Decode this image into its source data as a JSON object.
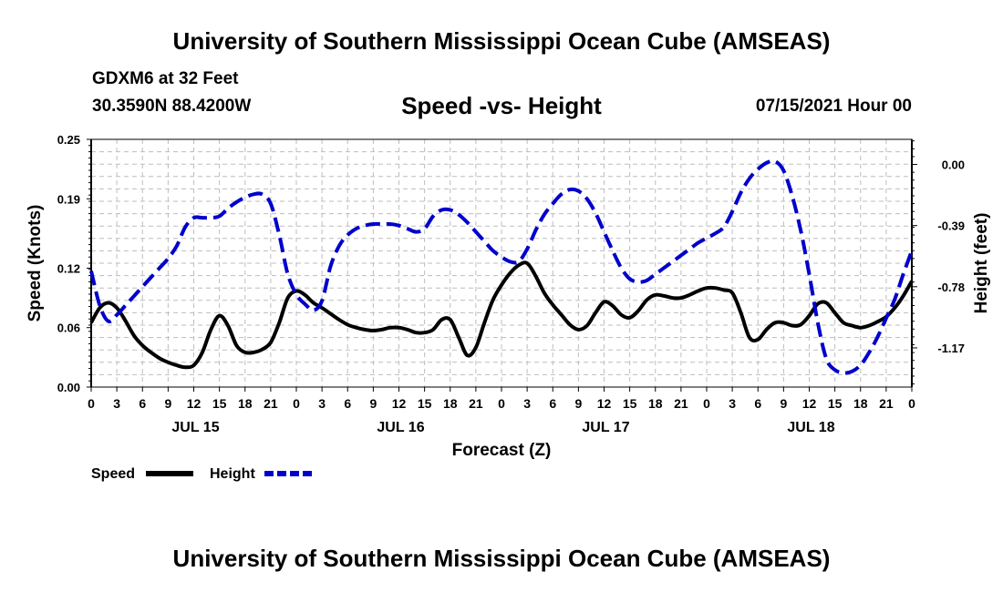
{
  "header": {
    "title": "University of Southern Mississippi Ocean Cube (AMSEAS)",
    "station": "GDXM6 at 32 Feet",
    "coords": "30.3590N  88.4200W",
    "chart_title": "Speed -vs- Height",
    "datetime": "07/15/2021 Hour 00"
  },
  "footer": {
    "title": "University of Southern Mississippi Ocean Cube (AMSEAS)"
  },
  "legend": {
    "speed_label": "Speed",
    "height_label": "Height"
  },
  "chart_data": {
    "type": "line",
    "title": "Speed -vs- Height",
    "xlabel": "Forecast (Z)",
    "ylabel": "Speed (Knots)",
    "y2label": "Height (feet)",
    "x_range": [
      0,
      96
    ],
    "x_ticks": [
      0,
      3,
      6,
      9,
      12,
      15,
      18,
      21,
      24,
      27,
      30,
      33,
      36,
      39,
      42,
      45,
      48,
      51,
      54,
      57,
      60,
      63,
      66,
      69,
      72,
      75,
      78,
      81,
      84,
      87,
      90,
      93,
      96
    ],
    "x_tick_labels": [
      "0",
      "3",
      "6",
      "9",
      "12",
      "15",
      "18",
      "21",
      "0",
      "3",
      "6",
      "9",
      "12",
      "15",
      "18",
      "21",
      "0",
      "3",
      "6",
      "9",
      "12",
      "15",
      "18",
      "21",
      "0",
      "3",
      "6",
      "9",
      "12",
      "15",
      "18",
      "21",
      "0"
    ],
    "day_labels": [
      {
        "label": "JUL 15",
        "x": 12
      },
      {
        "label": "JUL 16",
        "x": 36
      },
      {
        "label": "JUL 17",
        "x": 60
      },
      {
        "label": "JUL 18",
        "x": 84
      }
    ],
    "ylim": [
      0,
      0.25
    ],
    "y_ticks": [
      0.0,
      0.06,
      0.12,
      0.19,
      0.25
    ],
    "y_tick_labels": [
      "0.00",
      "0.06",
      "0.12",
      "0.19",
      "0.25"
    ],
    "y2lim": [
      -1.42,
      0.16
    ],
    "y2_ticks": [
      0.0,
      -0.39,
      -0.78,
      -1.17
    ],
    "y2_tick_labels": [
      "0.00",
      "-0.39",
      "-0.78",
      "-1.17"
    ],
    "grid": true,
    "series": [
      {
        "name": "Speed",
        "axis": "left",
        "color": "#000000",
        "style": "solid",
        "x": [
          0,
          1,
          2,
          3,
          4,
          5,
          6,
          7,
          8,
          9,
          10,
          11,
          12,
          13,
          14,
          15,
          16,
          17,
          18,
          19,
          20,
          21,
          22,
          23,
          24,
          25,
          26,
          27,
          28,
          29,
          30,
          31,
          32,
          33,
          34,
          35,
          36,
          37,
          38,
          39,
          40,
          41,
          42,
          43,
          44,
          45,
          46,
          47,
          48,
          49,
          50,
          51,
          52,
          53,
          54,
          55,
          56,
          57,
          58,
          59,
          60,
          61,
          62,
          63,
          64,
          65,
          66,
          67,
          68,
          69,
          70,
          71,
          72,
          73,
          74,
          75,
          76,
          77,
          78,
          79,
          80,
          81,
          82,
          83,
          84,
          85,
          86,
          87,
          88,
          89,
          90,
          91,
          92,
          93,
          94,
          95,
          96
        ],
        "values": [
          0.065,
          0.08,
          0.085,
          0.08,
          0.067,
          0.052,
          0.042,
          0.035,
          0.029,
          0.025,
          0.022,
          0.02,
          0.022,
          0.035,
          0.058,
          0.072,
          0.062,
          0.042,
          0.035,
          0.035,
          0.038,
          0.045,
          0.065,
          0.09,
          0.097,
          0.093,
          0.085,
          0.08,
          0.074,
          0.068,
          0.063,
          0.06,
          0.058,
          0.057,
          0.058,
          0.06,
          0.06,
          0.058,
          0.055,
          0.055,
          0.058,
          0.068,
          0.068,
          0.05,
          0.032,
          0.04,
          0.065,
          0.088,
          0.103,
          0.115,
          0.123,
          0.125,
          0.112,
          0.095,
          0.083,
          0.073,
          0.063,
          0.058,
          0.062,
          0.075,
          0.086,
          0.082,
          0.073,
          0.07,
          0.077,
          0.088,
          0.093,
          0.092,
          0.09,
          0.09,
          0.093,
          0.097,
          0.1,
          0.1,
          0.098,
          0.095,
          0.075,
          0.05,
          0.048,
          0.058,
          0.065,
          0.065,
          0.062,
          0.063,
          0.072,
          0.084,
          0.085,
          0.075,
          0.065,
          0.062,
          0.06,
          0.062,
          0.066,
          0.071,
          0.08,
          0.092,
          0.107
        ]
      },
      {
        "name": "Height",
        "axis": "right",
        "color": "#0000cc",
        "style": "dashed",
        "x": [
          0,
          1,
          2,
          3,
          4,
          5,
          6,
          7,
          8,
          9,
          10,
          11,
          12,
          13,
          14,
          15,
          16,
          17,
          18,
          19,
          20,
          21,
          22,
          23,
          24,
          25,
          26,
          27,
          28,
          29,
          30,
          31,
          32,
          33,
          34,
          35,
          36,
          37,
          38,
          39,
          40,
          41,
          42,
          43,
          44,
          45,
          46,
          47,
          48,
          49,
          50,
          51,
          52,
          53,
          54,
          55,
          56,
          57,
          58,
          59,
          60,
          61,
          62,
          63,
          64,
          65,
          66,
          67,
          68,
          69,
          70,
          71,
          72,
          73,
          74,
          75,
          76,
          77,
          78,
          79,
          80,
          81,
          82,
          83,
          84,
          85,
          86,
          87,
          88,
          89,
          90,
          91,
          92,
          93,
          94,
          95,
          96
        ],
        "values": [
          -0.68,
          -0.9,
          -1.0,
          -0.96,
          -0.9,
          -0.84,
          -0.78,
          -0.72,
          -0.66,
          -0.6,
          -0.52,
          -0.4,
          -0.34,
          -0.34,
          -0.34,
          -0.33,
          -0.28,
          -0.24,
          -0.21,
          -0.19,
          -0.19,
          -0.25,
          -0.45,
          -0.7,
          -0.83,
          -0.89,
          -0.93,
          -0.87,
          -0.65,
          -0.52,
          -0.45,
          -0.41,
          -0.39,
          -0.38,
          -0.38,
          -0.38,
          -0.39,
          -0.41,
          -0.43,
          -0.41,
          -0.33,
          -0.29,
          -0.29,
          -0.32,
          -0.37,
          -0.43,
          -0.49,
          -0.55,
          -0.59,
          -0.62,
          -0.62,
          -0.54,
          -0.42,
          -0.32,
          -0.25,
          -0.19,
          -0.16,
          -0.17,
          -0.22,
          -0.31,
          -0.43,
          -0.55,
          -0.66,
          -0.73,
          -0.75,
          -0.74,
          -0.7,
          -0.66,
          -0.62,
          -0.58,
          -0.54,
          -0.5,
          -0.47,
          -0.44,
          -0.4,
          -0.3,
          -0.18,
          -0.09,
          -0.03,
          0.01,
          0.02,
          -0.04,
          -0.2,
          -0.42,
          -0.7,
          -1.01,
          -1.24,
          -1.31,
          -1.33,
          -1.32,
          -1.28,
          -1.2,
          -1.1,
          -0.98,
          -0.86,
          -0.7,
          -0.55
        ]
      }
    ]
  }
}
